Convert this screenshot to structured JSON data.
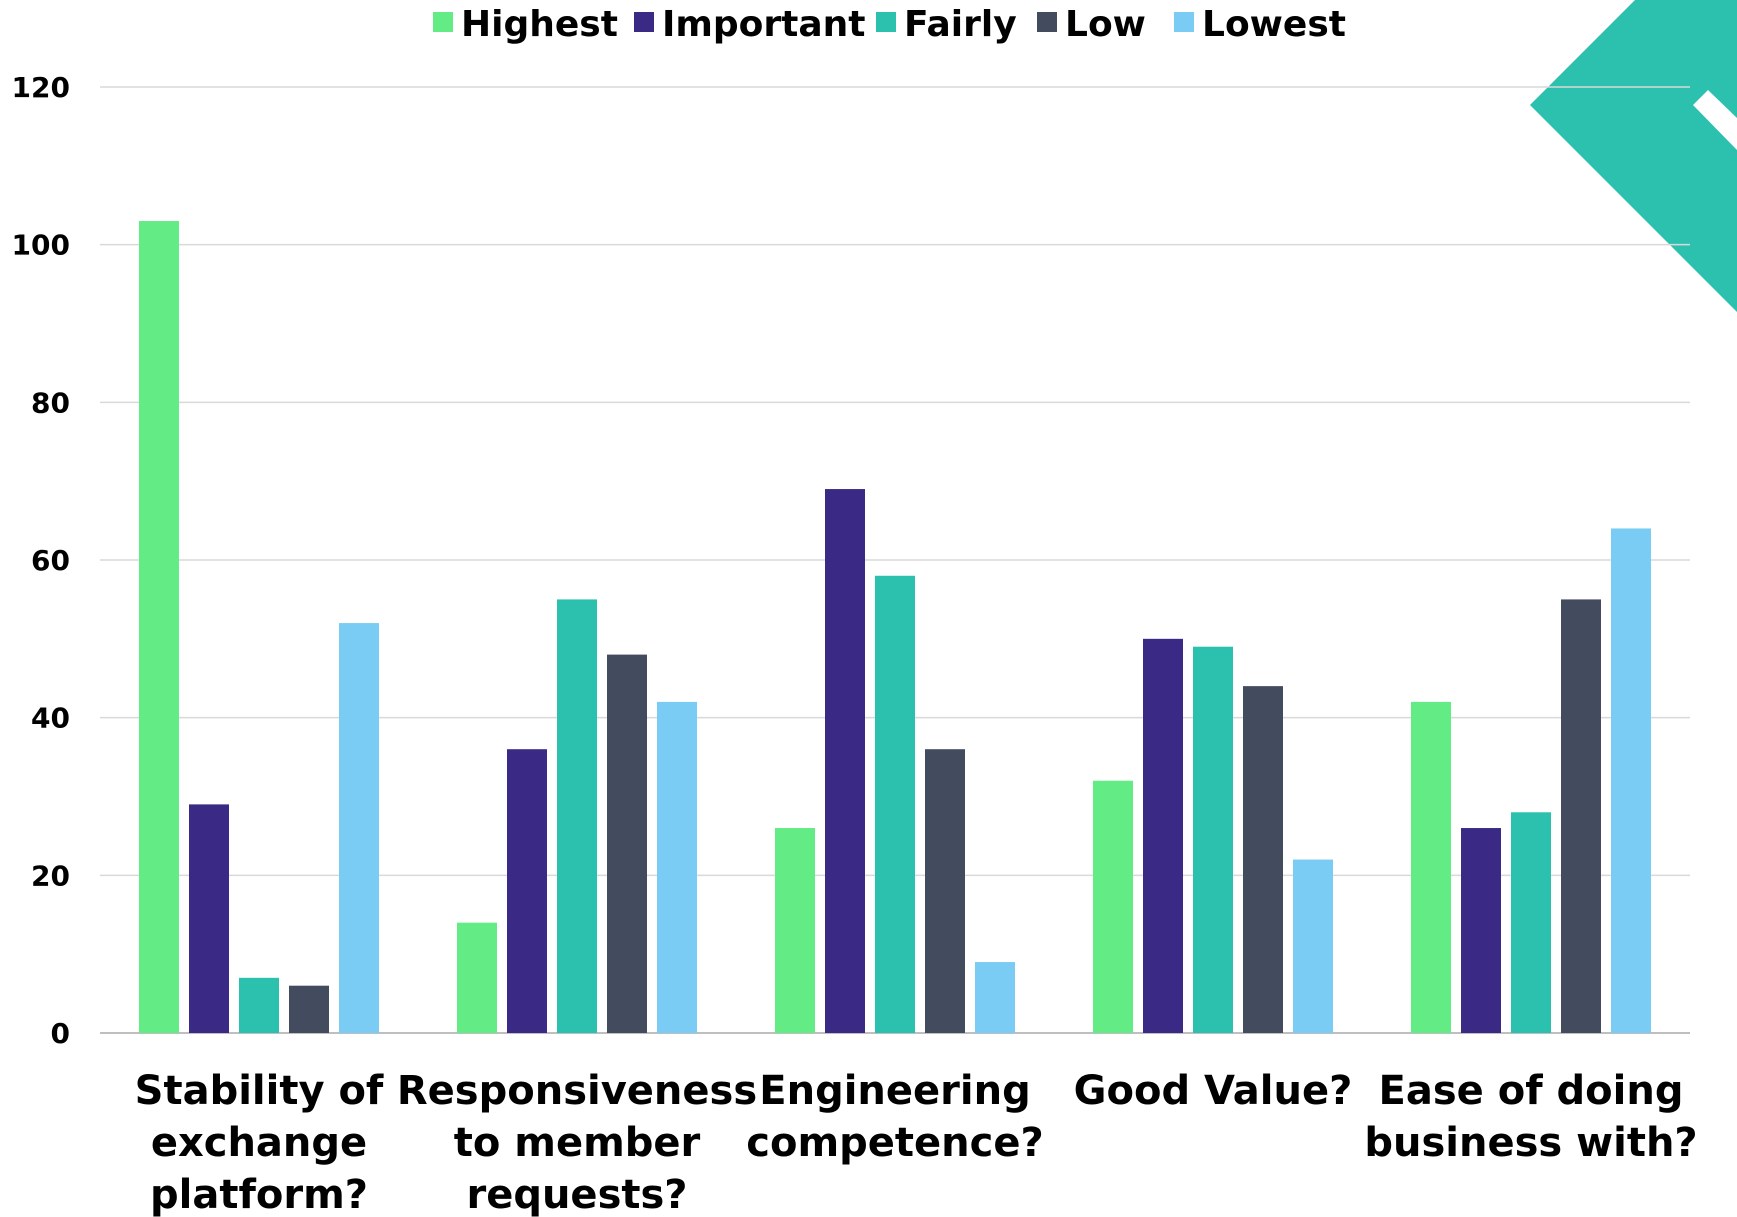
{
  "chart_data": {
    "type": "bar",
    "categories": [
      [
        "Stability of",
        "exchange",
        "platform?"
      ],
      [
        "Responsiveness",
        "to member",
        "requests?"
      ],
      [
        "Engineering",
        "competence?"
      ],
      [
        "Good Value?"
      ],
      [
        "Ease of doing",
        "business with?"
      ]
    ],
    "series": [
      {
        "name": "Highest",
        "color": "#63EC86",
        "values": [
          103,
          14,
          26,
          32,
          42
        ]
      },
      {
        "name": "Important",
        "color": "#3B2A85",
        "values": [
          29,
          36,
          69,
          50,
          26
        ]
      },
      {
        "name": "Fairly",
        "color": "#2BC1AE",
        "values": [
          7,
          55,
          58,
          49,
          28
        ]
      },
      {
        "name": "Low",
        "color": "#434B5E",
        "values": [
          6,
          48,
          36,
          44,
          55
        ]
      },
      {
        "name": "Lowest",
        "color": "#7ACCF5",
        "values": [
          52,
          42,
          9,
          22,
          64
        ]
      }
    ],
    "y_ticks": [
      "0",
      "20",
      "40",
      "60",
      "80",
      "100",
      "120"
    ],
    "ylim": [
      0,
      120
    ],
    "grid": true,
    "legend_position": "top-center",
    "title": "",
    "xlabel": "",
    "ylabel": "",
    "decoration_color": "#2BC1AE"
  }
}
